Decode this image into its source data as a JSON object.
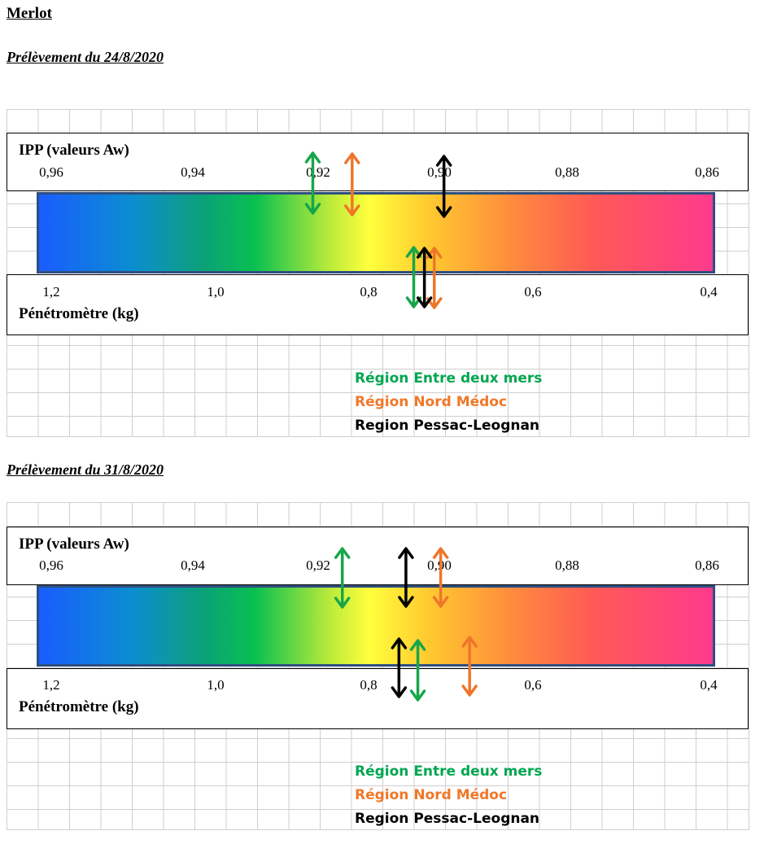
{
  "page": {
    "title": "Merlot"
  },
  "panels": [
    {
      "subtitle": "Prélèvement du 24/8/2020",
      "ipp_label": "IPP (valeurs Aw)",
      "ipp_ticks": [
        "0,96",
        "0,94",
        "0,92",
        "0,90",
        "0,88",
        "0,86"
      ],
      "pen_label": "Pénétromètre  (kg)",
      "pen_ticks": [
        "1,2",
        "1,0",
        "0,8",
        "0,6",
        "0,4"
      ],
      "legend": [
        {
          "label": "Région Entre deux mers",
          "color": "#00a650"
        },
        {
          "label": "Région Nord Médoc",
          "color": "#f07828"
        },
        {
          "label": "Region Pessac-Leognan",
          "color": "#000000"
        }
      ],
      "ipp_markers": [
        {
          "region": "Région Entre deux mers",
          "value": 0.919,
          "color": "#17a64a"
        },
        {
          "region": "Région Nord Médoc",
          "value": 0.913,
          "color": "#ee7629"
        },
        {
          "region": "Region Pessac-Leognan",
          "value": 0.899,
          "color": "#000000"
        }
      ],
      "pen_markers": [
        {
          "region": "Région Entre deux mers",
          "value": 0.75,
          "color": "#17a64a"
        },
        {
          "region": "Région Nord Médoc",
          "value": 0.725,
          "color": "#ee7629"
        },
        {
          "region": "Region Pessac-Leognan",
          "value": 0.737,
          "color": "#000000"
        }
      ]
    },
    {
      "subtitle": "Prélèvement du 31/8/2020",
      "ipp_label": "IPP (valeurs Aw)",
      "ipp_ticks": [
        "0,96",
        "0,94",
        "0,92",
        "0,90",
        "0,88",
        "0,86"
      ],
      "pen_label": "Pénétromètre  (kg)",
      "pen_ticks": [
        "1,2",
        "1,0",
        "0,8",
        "0,6",
        "0,4"
      ],
      "legend": [
        {
          "label": "Région Entre deux mers",
          "color": "#00a650"
        },
        {
          "label": "Région Nord Médoc",
          "color": "#f07828"
        },
        {
          "label": "Region Pessac-Leognan",
          "color": "#000000"
        }
      ],
      "ipp_markers": [
        {
          "region": "Région Entre deux mers",
          "value": 0.9145,
          "color": "#17a64a"
        },
        {
          "region": "Region Pessac-Leognan",
          "value": 0.9048,
          "color": "#000000"
        },
        {
          "region": "Région Nord Médoc",
          "value": 0.8995,
          "color": "#ee7629"
        }
      ],
      "pen_markers": [
        {
          "region": "Region Pessac-Leognan",
          "value": 0.768,
          "color": "#000000"
        },
        {
          "region": "Région Entre deux mers",
          "value": 0.745,
          "color": "#17a64a"
        },
        {
          "region": "Région Nord Médoc",
          "value": 0.682,
          "color": "#ee7629"
        }
      ]
    }
  ]
}
